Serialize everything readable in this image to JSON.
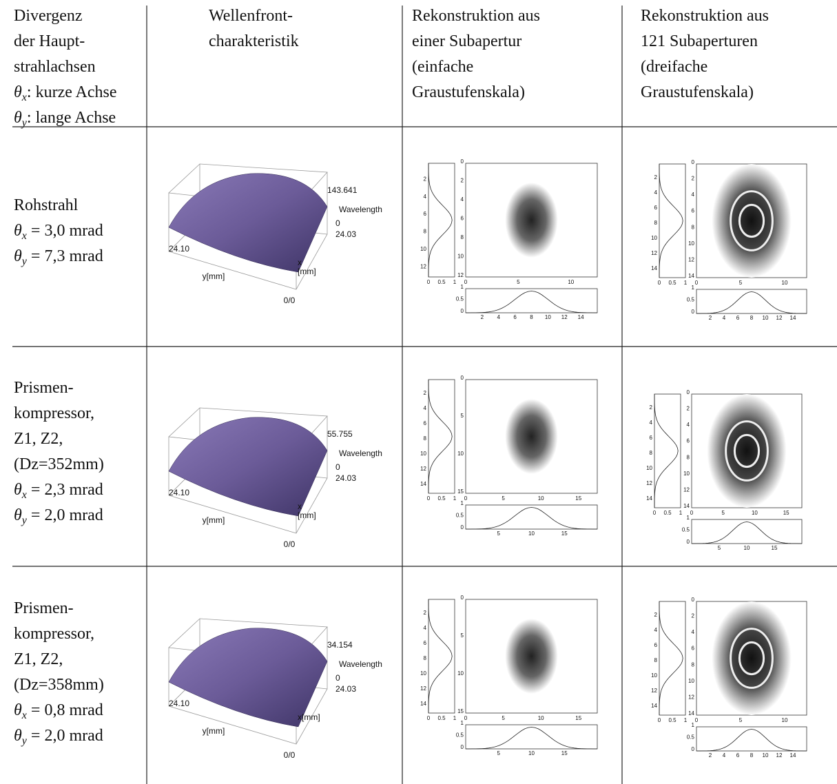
{
  "header": [
    {
      "lines": [
        "Divergenz",
        "der Haupt-",
        "strahlachsen",
        {
          "var": "θ",
          "sub": "x",
          "rest": ": kurze Achse"
        },
        {
          "var": "θ",
          "sub": "y",
          "rest": ": lange Achse"
        }
      ]
    },
    {
      "lines": [
        "Wellenfront-",
        "charakteristik"
      ]
    },
    {
      "lines": [
        "Rekonstruktion aus",
        "einer Subapertur",
        "(einfache",
        "Graustufenskala)"
      ]
    },
    {
      "lines": [
        "Rekonstruktion aus",
        "121 Subaperturen",
        "(dreifache",
        "Graustufenskala)"
      ]
    }
  ],
  "rows": [
    {
      "label": [
        "Rohstrahl",
        {
          "var": "θ",
          "sub": "x",
          "rest": " = 3,0 mrad"
        },
        {
          "var": "θ",
          "sub": "y",
          "rest": " = 7,3 mrad"
        }
      ],
      "wavefront": {
        "zmax": "143.641",
        "zlabel": "Wavelength",
        "zmin": "0",
        "xmax": "24.03",
        "ymax": "24.10",
        "ylabel": "y[mm]",
        "xlabel": [
          "x",
          "[mm]"
        ],
        "origin": "0/0"
      },
      "single": {
        "side_y": [
          2,
          4,
          6,
          8,
          10,
          12
        ],
        "side_x": [
          0,
          0.5,
          1
        ],
        "main_y": [
          0,
          2,
          4,
          6,
          8,
          10,
          12
        ],
        "main_x": [
          0,
          5,
          10
        ],
        "bottom_y": [
          0,
          0.5,
          1
        ],
        "bottom_x": [
          2,
          4,
          6,
          8,
          10,
          12,
          14
        ]
      },
      "multi": {
        "side_y": [
          2,
          4,
          6,
          8,
          10,
          12,
          14
        ],
        "side_x": [
          0,
          0.5,
          1
        ],
        "main_y": [
          0,
          2,
          4,
          6,
          8,
          10,
          12,
          14
        ],
        "main_x": [
          0,
          5,
          10
        ],
        "bottom_y": [
          0,
          0.5,
          1
        ],
        "bottom_x": [
          2,
          4,
          6,
          8,
          10,
          12,
          14
        ]
      }
    },
    {
      "label": [
        "Prismen-",
        "kompressor,",
        "Z1, Z2,",
        "(Dz=352mm)",
        {
          "var": "θ",
          "sub": "x",
          "rest": " = 2,3 mrad"
        },
        {
          "var": "θ",
          "sub": "y",
          "rest": " = 2,0 mrad"
        }
      ],
      "wavefront": {
        "zmax": "55.755",
        "zlabel": "Wavelength",
        "zmin": "0",
        "xmax": "24.03",
        "ymax": "24.10",
        "ylabel": "y[mm]",
        "xlabel": [
          "x",
          "[mm]"
        ],
        "origin": "0/0"
      },
      "single": {
        "side_y": [
          2,
          4,
          6,
          8,
          10,
          12,
          14
        ],
        "side_x": [
          0,
          0.5,
          1
        ],
        "main_y": [
          0,
          5,
          10,
          15
        ],
        "main_x": [
          0,
          5,
          10,
          15
        ],
        "bottom_y": [
          0,
          0.5,
          1
        ],
        "bottom_x": [
          5,
          10,
          15
        ]
      },
      "multi": {
        "side_y": [
          2,
          4,
          6,
          8,
          10,
          12,
          14
        ],
        "side_x": [
          0,
          0.5,
          1
        ],
        "main_y": [
          0,
          2,
          4,
          6,
          8,
          10,
          12,
          14
        ],
        "main_x": [
          0,
          5,
          10,
          15
        ],
        "bottom_y": [
          0,
          0.5,
          1
        ],
        "bottom_x": [
          5,
          10,
          15
        ]
      }
    },
    {
      "label": [
        "Prismen-",
        "kompressor,",
        "Z1, Z2,",
        "(Dz=358mm)",
        {
          "var": "θ",
          "sub": "x",
          "rest": " = 0,8 mrad"
        },
        {
          "var": "θ",
          "sub": "y",
          "rest": " = 2,0 mrad"
        }
      ],
      "wavefront": {
        "zmax": "34.154",
        "zlabel": "Wavelength",
        "zmin": "0",
        "xmax": "24.03",
        "ymax": "24.10",
        "ylabel": "y[mm]",
        "xlabel": "x[mm]",
        "origin": "0/0"
      },
      "single": {
        "side_y": [
          2,
          4,
          6,
          8,
          10,
          12,
          14
        ],
        "side_x": [
          0,
          0.5,
          1
        ],
        "main_y": [
          0,
          5,
          10,
          15
        ],
        "main_x": [
          0,
          5,
          10,
          15
        ],
        "bottom_y": [
          0,
          0.5,
          1
        ],
        "bottom_x": [
          5,
          10,
          15
        ]
      },
      "multi": {
        "side_y": [
          2,
          4,
          6,
          8,
          10,
          12,
          14
        ],
        "side_x": [
          0,
          0.5,
          1
        ],
        "main_y": [
          0,
          2,
          4,
          6,
          8,
          10,
          12,
          14
        ],
        "main_x": [
          0,
          5,
          10
        ],
        "bottom_y": [
          0,
          0.5,
          1
        ],
        "bottom_x": [
          2,
          4,
          6,
          8,
          10,
          12,
          14
        ]
      }
    }
  ]
}
